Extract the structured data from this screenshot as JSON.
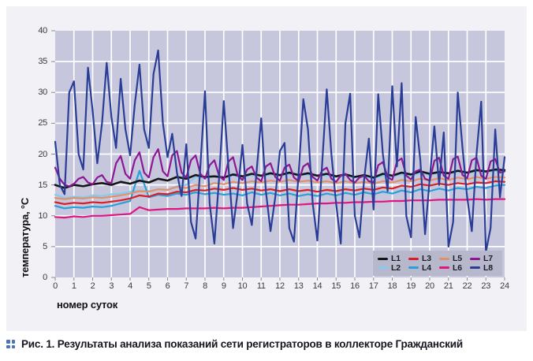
{
  "figure": {
    "caption_prefix": "Рис. 1. ",
    "caption_text": "Результаты анализа показаний сети регистраторов в коллекторе Гражданский",
    "icons": {
      "caption_bullet": "four-dots-grid-icon"
    }
  },
  "chart_data": {
    "type": "line",
    "title": "",
    "xlabel": "номер суток",
    "ylabel": "температура, °C",
    "xlim": [
      0,
      24
    ],
    "ylim": [
      0,
      40
    ],
    "x_ticks": [
      0,
      1,
      2,
      3,
      4,
      5,
      6,
      7,
      8,
      9,
      10,
      11,
      12,
      13,
      14,
      15,
      16,
      17,
      18,
      19,
      20,
      21,
      22,
      23,
      24
    ],
    "y_ticks": [
      0,
      5,
      10,
      15,
      20,
      25,
      30,
      35,
      40
    ],
    "grid": true,
    "legend_position": "bottom-right-inside",
    "colors": {
      "panel_bg": "#f1f1f6",
      "plot_bg": "#c6c7dd",
      "grid": "#ffffff",
      "legend_bg": "#b7b8cb",
      "caption_accent": "#4d74b4"
    },
    "series": [
      {
        "name": "L1",
        "color": "#151515",
        "x_start": 0,
        "x_step": 0.5,
        "values": [
          15.0,
          14.5,
          15.0,
          14.8,
          15.1,
          15.3,
          15.0,
          15.5,
          15.2,
          15.7,
          15.4,
          16.0,
          15.7,
          16.3,
          16.0,
          16.6,
          16.3,
          16.4,
          16.2,
          16.7,
          16.4,
          16.8,
          16.5,
          16.9,
          16.6,
          17.0,
          16.6,
          16.9,
          16.5,
          16.8,
          16.4,
          16.7,
          16.3,
          16.6,
          16.2,
          16.8,
          16.5,
          17.0,
          16.7,
          17.2,
          16.8,
          17.1,
          16.9,
          17.3,
          17.0,
          17.4,
          17.2,
          17.5,
          17.4
        ]
      },
      {
        "name": "L2",
        "color": "#85cbee",
        "x_start": 0,
        "x_step": 0.5,
        "values": [
          13.4,
          12.9,
          13.1,
          13.0,
          13.3,
          13.2,
          13.5,
          13.6,
          13.9,
          14.1,
          14.0,
          14.3,
          14.2,
          14.8,
          15.0,
          16.3,
          16.1,
          16.4,
          16.2,
          16.5,
          16.3,
          16.6,
          16.4,
          16.7,
          16.5,
          16.8,
          16.5,
          16.7,
          16.4,
          16.6,
          16.3,
          16.5,
          16.2,
          16.4,
          16.1,
          16.5,
          16.3,
          16.7,
          16.5,
          16.9,
          16.6,
          17.0,
          16.8,
          17.1,
          16.9,
          17.2,
          17.0,
          17.3,
          17.2
        ]
      },
      {
        "name": "L3",
        "color": "#d81f26",
        "x_start": 0,
        "x_step": 0.5,
        "values": [
          12.2,
          11.9,
          12.1,
          12.0,
          12.2,
          12.1,
          12.3,
          12.5,
          12.8,
          13.3,
          13.1,
          13.6,
          13.5,
          13.9,
          13.8,
          14.2,
          14.1,
          14.4,
          14.2,
          14.5,
          14.2,
          14.4,
          14.1,
          14.3,
          14.0,
          14.3,
          14.0,
          14.2,
          13.9,
          14.2,
          14.0,
          14.3,
          14.1,
          14.4,
          14.2,
          14.6,
          14.4,
          14.9,
          14.7,
          15.1,
          14.9,
          15.2,
          15.0,
          15.3,
          15.1,
          15.4,
          15.3,
          15.6,
          15.5
        ]
      },
      {
        "name": "L4",
        "color": "#2b9fd9",
        "x_start": 0,
        "x_step": 0.5,
        "values": [
          11.6,
          11.2,
          11.4,
          11.3,
          11.5,
          11.4,
          11.6,
          12.0,
          12.4,
          17.3,
          13.0,
          13.4,
          13.2,
          13.6,
          13.4,
          13.8,
          13.5,
          13.7,
          13.4,
          13.6,
          13.3,
          13.8,
          13.4,
          13.7,
          13.3,
          13.6,
          13.2,
          13.5,
          13.2,
          13.6,
          13.3,
          13.7,
          13.4,
          13.8,
          13.5,
          13.9,
          13.6,
          14.1,
          13.8,
          14.3,
          14.0,
          14.4,
          14.1,
          14.5,
          14.3,
          14.7,
          14.5,
          14.9,
          15.0
        ]
      },
      {
        "name": "L5",
        "color": "#e2906c",
        "x_start": 0,
        "x_step": 0.5,
        "values": [
          12.9,
          12.7,
          12.9,
          12.8,
          13.0,
          12.9,
          13.1,
          13.3,
          13.6,
          14.0,
          13.9,
          14.3,
          14.2,
          14.7,
          14.5,
          15.0,
          14.8,
          15.3,
          15.1,
          15.5,
          15.3,
          15.6,
          15.4,
          15.7,
          15.5,
          15.8,
          15.5,
          15.7,
          15.4,
          15.6,
          15.3,
          15.6,
          15.3,
          15.5,
          15.2,
          15.6,
          15.4,
          15.8,
          15.6,
          16.0,
          15.7,
          16.1,
          15.8,
          16.2,
          15.9,
          16.3,
          16.0,
          16.3,
          16.2
        ]
      },
      {
        "name": "L6",
        "color": "#df1583",
        "x_start": 0,
        "x_step": 0.5,
        "values": [
          9.8,
          9.7,
          9.9,
          9.8,
          10.0,
          10.0,
          10.1,
          10.2,
          10.3,
          11.4,
          10.9,
          11.0,
          11.1,
          11.1,
          11.2,
          11.2,
          11.2,
          11.3,
          11.2,
          11.3,
          11.3,
          11.4,
          11.5,
          11.6,
          11.7,
          11.8,
          11.8,
          11.9,
          12.0,
          12.0,
          12.1,
          12.1,
          12.2,
          12.2,
          12.3,
          12.3,
          12.4,
          12.4,
          12.5,
          12.5,
          12.5,
          12.6,
          12.6,
          12.6,
          12.6,
          12.7,
          12.6,
          12.7,
          12.7
        ]
      },
      {
        "name": "L7",
        "color": "#8d1794",
        "x_start": 0,
        "x_step": 0.25,
        "values": [
          17.8,
          16.0,
          15.0,
          14.8,
          15.2,
          16.0,
          16.3,
          15.4,
          15.1,
          16.2,
          16.6,
          15.5,
          15.3,
          18.5,
          19.7,
          16.8,
          16.0,
          19.0,
          20.3,
          17.0,
          16.2,
          19.5,
          20.8,
          17.2,
          16.4,
          19.8,
          20.5,
          17.0,
          16.2,
          19.0,
          19.8,
          16.8,
          16.0,
          18.2,
          19.0,
          16.5,
          15.8,
          18.8,
          19.5,
          16.5,
          15.8,
          17.5,
          18.0,
          16.2,
          15.6,
          18.0,
          18.5,
          16.3,
          15.7,
          17.8,
          18.3,
          16.2,
          15.6,
          18.0,
          18.5,
          16.3,
          15.7,
          17.3,
          17.8,
          16.0,
          15.5,
          16.5,
          16.8,
          15.8,
          15.4,
          16.2,
          16.5,
          15.6,
          15.4,
          18.2,
          18.7,
          16.3,
          15.8,
          18.8,
          19.3,
          16.5,
          15.9,
          17.2,
          17.5,
          16.0,
          15.7,
          18.9,
          19.4,
          16.5,
          16.0,
          19.2,
          19.6,
          16.6,
          16.1,
          19.0,
          19.4,
          16.5,
          16.0,
          18.8,
          19.2,
          17.0,
          17.2
        ]
      },
      {
        "name": "L8",
        "color": "#2a3d96",
        "x_start": 0,
        "x_step": 0.25,
        "values": [
          22.0,
          15.0,
          13.5,
          30.0,
          31.8,
          20.0,
          17.5,
          34.0,
          27.0,
          18.5,
          25.0,
          34.8,
          26.0,
          21.0,
          32.2,
          24.0,
          19.8,
          28.0,
          34.5,
          24.0,
          21.0,
          33.0,
          36.8,
          25.0,
          19.5,
          23.3,
          17.0,
          13.2,
          21.6,
          9.0,
          6.3,
          18.0,
          30.2,
          12.0,
          5.5,
          16.0,
          28.6,
          18.0,
          8.0,
          14.0,
          21.5,
          12.0,
          8.5,
          17.0,
          25.8,
          14.0,
          7.5,
          13.0,
          20.5,
          21.8,
          8.0,
          5.8,
          17.0,
          28.9,
          24.0,
          12.0,
          6.0,
          18.0,
          30.5,
          20.0,
          12.0,
          5.5,
          25.0,
          29.8,
          10.0,
          6.5,
          16.0,
          22.5,
          11.0,
          29.7,
          20.0,
          14.0,
          31.0,
          18.0,
          31.5,
          10.0,
          6.5,
          26.0,
          19.0,
          7.0,
          16.0,
          24.5,
          15.0,
          23.5,
          5.0,
          9.0,
          30.0,
          21.0,
          13.0,
          7.5,
          20.0,
          28.5,
          4.2,
          8.0,
          24.0,
          13.0,
          19.5
        ]
      }
    ]
  }
}
